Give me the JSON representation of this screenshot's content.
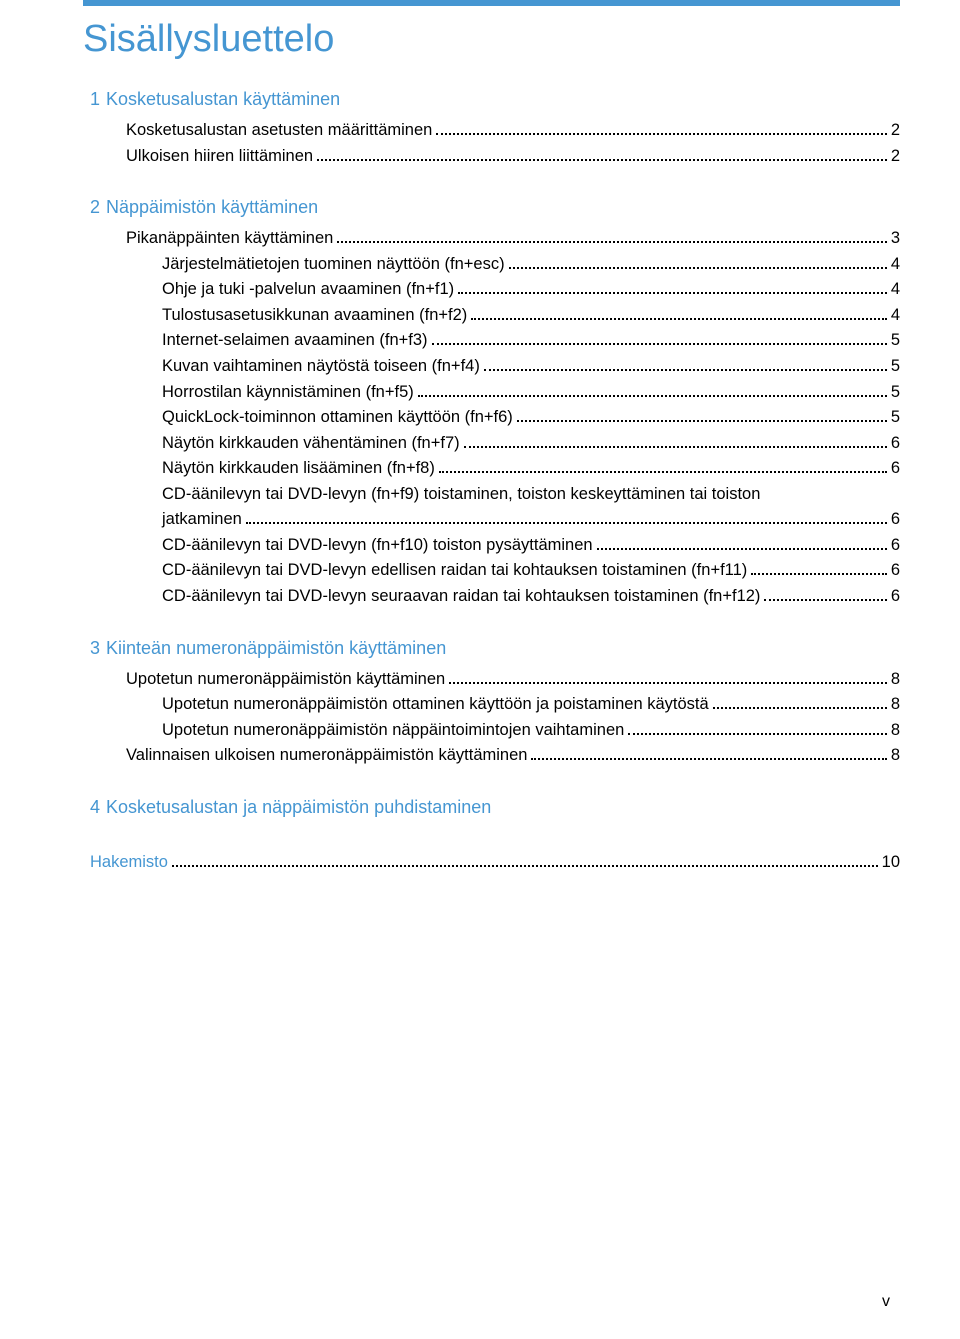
{
  "title": "Sisällysluettelo",
  "footer": "v",
  "index_label": "Hakemisto",
  "index_page": "10",
  "sections": [
    {
      "num": "1",
      "title": "Kosketusalustan käyttäminen",
      "entries": [
        {
          "level": 1,
          "text": "Kosketusalustan asetusten määrittäminen",
          "page": "2"
        },
        {
          "level": 1,
          "text": "Ulkoisen hiiren liittäminen",
          "page": "2"
        }
      ]
    },
    {
      "num": "2",
      "title": "Näppäimistön käyttäminen",
      "entries": [
        {
          "level": 1,
          "text": "Pikanäppäinten käyttäminen",
          "page": "3"
        },
        {
          "level": 2,
          "text": "Järjestelmätietojen tuominen näyttöön (fn+esc)",
          "page": "4"
        },
        {
          "level": 2,
          "text": "Ohje ja tuki -palvelun avaaminen (fn+f1)",
          "page": "4"
        },
        {
          "level": 2,
          "text": "Tulostusasetusikkunan avaaminen (fn+f2)",
          "page": "4"
        },
        {
          "level": 2,
          "text": "Internet-selaimen avaaminen (fn+f3)",
          "page": "5"
        },
        {
          "level": 2,
          "text": "Kuvan vaihtaminen näytöstä toiseen (fn+f4)",
          "page": "5"
        },
        {
          "level": 2,
          "text": "Horrostilan käynnistäminen (fn+f5)",
          "page": "5"
        },
        {
          "level": 2,
          "text": "QuickLock-toiminnon ottaminen käyttöön (fn+f6)",
          "page": "5"
        },
        {
          "level": 2,
          "text": "Näytön kirkkauden vähentäminen (fn+f7)",
          "page": "6"
        },
        {
          "level": 2,
          "text": "Näytön kirkkauden lisääminen (fn+f8)",
          "page": "6"
        },
        {
          "level": 2,
          "wrap": true,
          "text": "CD-äänilevyn tai DVD-levyn (fn+f9) toistaminen, toiston keskeyttäminen tai toiston",
          "text2": "jatkaminen",
          "page": "6"
        },
        {
          "level": 2,
          "text": "CD-äänilevyn tai DVD-levyn (fn+f10) toiston pysäyttäminen",
          "page": "6"
        },
        {
          "level": 2,
          "text": "CD-äänilevyn tai DVD-levyn edellisen raidan tai kohtauksen toistaminen (fn+f11)",
          "page": "6"
        },
        {
          "level": 2,
          "text": "CD-äänilevyn tai DVD-levyn seuraavan raidan tai kohtauksen toistaminen (fn+f12)",
          "page": "6"
        }
      ]
    },
    {
      "num": "3",
      "title": "Kiinteän numeronäppäimistön käyttäminen",
      "entries": [
        {
          "level": 1,
          "text": "Upotetun numeronäppäimistön käyttäminen",
          "page": "8"
        },
        {
          "level": 2,
          "text": "Upotetun numeronäppäimistön ottaminen käyttöön ja poistaminen käytöstä",
          "page": "8"
        },
        {
          "level": 2,
          "text": "Upotetun numeronäppäimistön näppäintoimintojen vaihtaminen",
          "page": "8"
        },
        {
          "level": 1,
          "text": "Valinnaisen ulkoisen numeronäppäimistön käyttäminen",
          "page": "8"
        }
      ]
    },
    {
      "num": "4",
      "title": "Kosketusalustan ja näppäimistön puhdistaminen",
      "entries": []
    }
  ]
}
